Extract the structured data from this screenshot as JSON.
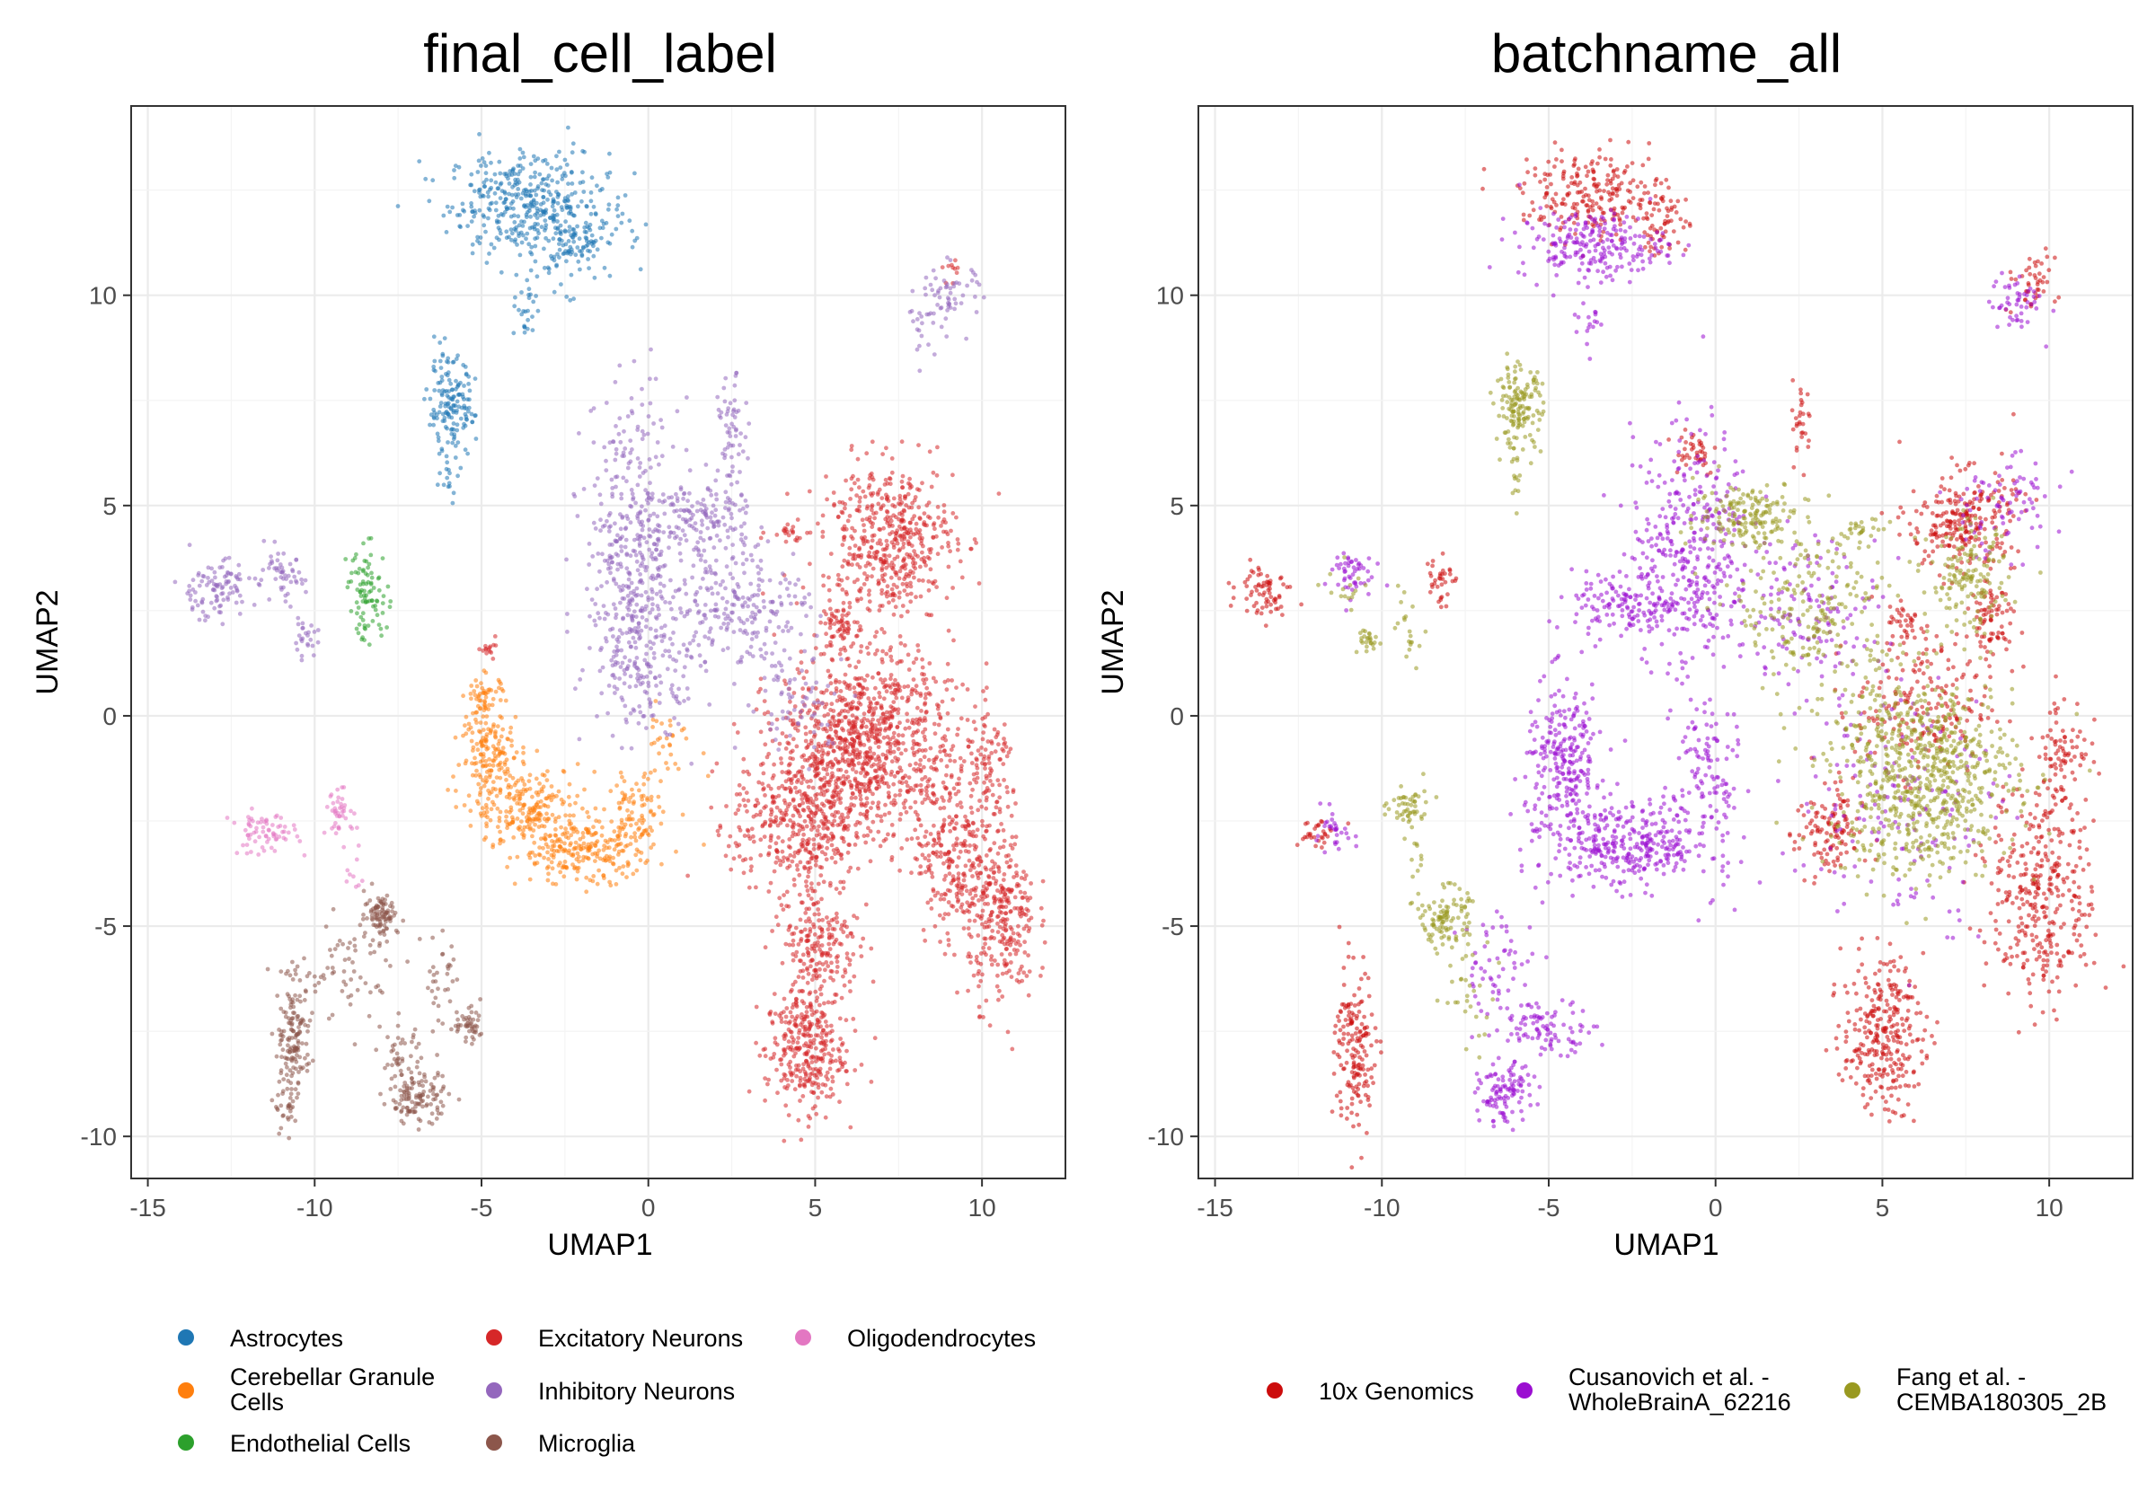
{
  "chart_data": [
    {
      "type": "scatter",
      "title": "final_cell_label",
      "xlabel": "UMAP1",
      "ylabel": "UMAP2",
      "xlim": [
        -15.5,
        12.5
      ],
      "ylim": [
        -11,
        14.5
      ],
      "xticks": [
        -15,
        -10,
        -5,
        0,
        5,
        10
      ],
      "xtick_labels": [
        "-15",
        "-10",
        "-5",
        "0",
        "5",
        "10"
      ],
      "yticks": [
        -10,
        -5,
        0,
        5,
        10
      ],
      "ytick_labels": [
        "-10",
        "-5",
        "0",
        "5",
        "10"
      ],
      "grid": true,
      "legend_position": "bottom",
      "series": [
        {
          "name": "Astrocytes",
          "color": "#1f77b4",
          "clusters": [
            {
              "cx": -3.6,
              "cy": 12.2,
              "sx": 1.2,
              "sy": 0.6,
              "n": 380
            },
            {
              "cx": -2.4,
              "cy": 11.2,
              "sx": 0.8,
              "sy": 0.5,
              "n": 120
            },
            {
              "cx": -3.7,
              "cy": 9.6,
              "sx": 0.15,
              "sy": 0.4,
              "n": 25
            },
            {
              "cx": -5.9,
              "cy": 7.3,
              "sx": 0.35,
              "sy": 0.6,
              "n": 160
            },
            {
              "cx": -6.0,
              "cy": 5.6,
              "sx": 0.1,
              "sy": 0.3,
              "n": 10
            }
          ]
        },
        {
          "name": "Cerebellar Granule Cells",
          "color": "#ff7f0e",
          "clusters": [
            {
              "cx": -4.9,
              "cy": 0.4,
              "sx": 0.3,
              "sy": 0.3,
              "n": 60
            },
            {
              "cx": -4.7,
              "cy": -0.9,
              "sx": 0.45,
              "sy": 0.5,
              "n": 140
            },
            {
              "cx": -3.6,
              "cy": -2.2,
              "sx": 0.8,
              "sy": 0.5,
              "n": 220
            },
            {
              "cx": -1.9,
              "cy": -3.2,
              "sx": 1.0,
              "sy": 0.4,
              "n": 240
            },
            {
              "cx": -0.4,
              "cy": -2.4,
              "sx": 0.4,
              "sy": 0.6,
              "n": 80
            },
            {
              "cx": 0.6,
              "cy": -0.6,
              "sx": 0.5,
              "sy": 0.4,
              "n": 30
            }
          ]
        },
        {
          "name": "Endothelial Cells",
          "color": "#2ca02c",
          "clusters": [
            {
              "cx": -8.4,
              "cy": 2.9,
              "sx": 0.3,
              "sy": 0.55,
              "n": 90
            }
          ]
        },
        {
          "name": "Excitatory Neurons",
          "color": "#d62728",
          "clusters": [
            {
              "cx": 7.2,
              "cy": 4.2,
              "sx": 1.0,
              "sy": 0.9,
              "n": 500
            },
            {
              "cx": 6.5,
              "cy": -0.6,
              "sx": 1.3,
              "sy": 1.1,
              "n": 1000
            },
            {
              "cx": 4.5,
              "cy": -2.6,
              "sx": 1.0,
              "sy": 0.8,
              "n": 400
            },
            {
              "cx": 5.1,
              "cy": -5.5,
              "sx": 0.6,
              "sy": 1.0,
              "n": 250
            },
            {
              "cx": 4.7,
              "cy": -8.0,
              "sx": 0.6,
              "sy": 0.7,
              "n": 300
            },
            {
              "cx": 9.2,
              "cy": -3.2,
              "sx": 0.6,
              "sy": 1.1,
              "n": 280
            },
            {
              "cx": 10.6,
              "cy": -4.8,
              "sx": 0.5,
              "sy": 1.0,
              "n": 280
            },
            {
              "cx": 10.3,
              "cy": -1.4,
              "sx": 0.4,
              "sy": 0.8,
              "n": 90
            },
            {
              "cx": 5.7,
              "cy": 2.1,
              "sx": 0.25,
              "sy": 0.3,
              "n": 60
            },
            {
              "cx": 4.2,
              "cy": 4.4,
              "sx": 0.3,
              "sy": 0.15,
              "n": 20
            },
            {
              "cx": -4.8,
              "cy": 1.7,
              "sx": 0.2,
              "sy": 0.15,
              "n": 15
            },
            {
              "cx": 9.2,
              "cy": 10.6,
              "sx": 0.2,
              "sy": 0.2,
              "n": 10
            }
          ]
        },
        {
          "name": "Inhibitory Neurons",
          "color": "#9467bd",
          "clusters": [
            {
              "cx": -0.5,
              "cy": 4.0,
              "sx": 0.7,
              "sy": 1.7,
              "n": 380
            },
            {
              "cx": 1.6,
              "cy": 4.6,
              "sx": 0.7,
              "sy": 0.5,
              "n": 150
            },
            {
              "cx": 2.5,
              "cy": 6.6,
              "sx": 0.2,
              "sy": 0.7,
              "n": 60
            },
            {
              "cx": 0.0,
              "cy": 1.4,
              "sx": 0.8,
              "sy": 0.8,
              "n": 180
            },
            {
              "cx": 2.8,
              "cy": 2.6,
              "sx": 1.0,
              "sy": 0.8,
              "n": 220
            },
            {
              "cx": -13.0,
              "cy": 3.0,
              "sx": 0.6,
              "sy": 0.35,
              "n": 100
            },
            {
              "cx": -11.0,
              "cy": 3.3,
              "sx": 0.35,
              "sy": 0.3,
              "n": 50
            },
            {
              "cx": -10.3,
              "cy": 1.8,
              "sx": 0.2,
              "sy": 0.2,
              "n": 25
            },
            {
              "cx": 9.0,
              "cy": 10.0,
              "sx": 0.5,
              "sy": 0.4,
              "n": 60
            },
            {
              "cx": 8.2,
              "cy": 9.2,
              "sx": 0.2,
              "sy": 0.3,
              "n": 15
            },
            {
              "cx": 4.5,
              "cy": 0.3,
              "sx": 0.8,
              "sy": 0.6,
              "n": 60
            }
          ]
        },
        {
          "name": "Microglia",
          "color": "#8c564b",
          "clusters": [
            {
              "cx": -8.0,
              "cy": -4.7,
              "sx": 0.25,
              "sy": 0.25,
              "n": 90
            },
            {
              "cx": -10.6,
              "cy": -7.6,
              "sx": 0.25,
              "sy": 0.6,
              "n": 130
            },
            {
              "cx": -10.8,
              "cy": -9.2,
              "sx": 0.2,
              "sy": 0.4,
              "n": 40
            },
            {
              "cx": -9.9,
              "cy": -6.2,
              "sx": 0.5,
              "sy": 0.2,
              "n": 25
            },
            {
              "cx": -6.9,
              "cy": -9.1,
              "sx": 0.45,
              "sy": 0.3,
              "n": 110
            },
            {
              "cx": -7.4,
              "cy": -8.2,
              "sx": 0.3,
              "sy": 0.4,
              "n": 50
            },
            {
              "cx": -5.4,
              "cy": -7.4,
              "sx": 0.3,
              "sy": 0.2,
              "n": 50
            },
            {
              "cx": -6.2,
              "cy": -6.3,
              "sx": 0.3,
              "sy": 0.6,
              "n": 30
            },
            {
              "cx": -8.7,
              "cy": -6.0,
              "sx": 0.7,
              "sy": 0.8,
              "n": 50
            }
          ]
        },
        {
          "name": "Oligodendrocytes",
          "color": "#e377c2",
          "clusters": [
            {
              "cx": -11.5,
              "cy": -2.8,
              "sx": 0.5,
              "sy": 0.25,
              "n": 70
            },
            {
              "cx": -9.2,
              "cy": -2.3,
              "sx": 0.25,
              "sy": 0.25,
              "n": 40
            },
            {
              "cx": -8.9,
              "cy": -3.7,
              "sx": 0.15,
              "sy": 0.4,
              "n": 10
            }
          ]
        }
      ]
    },
    {
      "type": "scatter",
      "title": "batchname_all",
      "xlabel": "UMAP1",
      "ylabel": "UMAP2",
      "xlim": [
        -15.5,
        12.5
      ],
      "ylim": [
        -11,
        14.5
      ],
      "xticks": [
        -15,
        -10,
        -5,
        0,
        5,
        10
      ],
      "xtick_labels": [
        "-15",
        "-10",
        "-5",
        "0",
        "5",
        "10"
      ],
      "yticks": [
        -10,
        -5,
        0,
        5,
        10
      ],
      "ytick_labels": [
        "-10",
        "-5",
        "0",
        "5",
        "10"
      ],
      "grid": true,
      "legend_position": "bottom",
      "series": [
        {
          "name": "10x Genomics",
          "color": "#cc0c0c",
          "clusters": [
            {
              "cx": -3.6,
              "cy": 12.4,
              "sx": 1.1,
              "sy": 0.5,
              "n": 230
            },
            {
              "cx": -1.6,
              "cy": 11.7,
              "sx": 0.4,
              "sy": 0.4,
              "n": 60
            },
            {
              "cx": 9.4,
              "cy": 10.3,
              "sx": 0.4,
              "sy": 0.35,
              "n": 45
            },
            {
              "cx": -13.5,
              "cy": 3.0,
              "sx": 0.4,
              "sy": 0.3,
              "n": 70
            },
            {
              "cx": -8.3,
              "cy": 3.3,
              "sx": 0.2,
              "sy": 0.35,
              "n": 35
            },
            {
              "cx": -12.0,
              "cy": -2.8,
              "sx": 0.3,
              "sy": 0.2,
              "n": 30
            },
            {
              "cx": -10.8,
              "cy": -8.0,
              "sx": 0.3,
              "sy": 1.0,
              "n": 170
            },
            {
              "cx": 7.4,
              "cy": 4.6,
              "sx": 0.8,
              "sy": 0.6,
              "n": 250
            },
            {
              "cx": 8.3,
              "cy": 2.3,
              "sx": 0.4,
              "sy": 0.5,
              "n": 80
            },
            {
              "cx": 5.0,
              "cy": -7.6,
              "sx": 0.6,
              "sy": 0.9,
              "n": 300
            },
            {
              "cx": 9.8,
              "cy": -4.2,
              "sx": 0.8,
              "sy": 1.3,
              "n": 350
            },
            {
              "cx": 3.4,
              "cy": -2.8,
              "sx": 0.5,
              "sy": 0.6,
              "n": 120
            },
            {
              "cx": 6.2,
              "cy": 0.2,
              "sx": 1.0,
              "sy": 0.8,
              "n": 180
            },
            {
              "cx": -0.7,
              "cy": 6.3,
              "sx": 0.4,
              "sy": 0.3,
              "n": 40
            },
            {
              "cx": 2.6,
              "cy": 7.0,
              "sx": 0.15,
              "sy": 0.5,
              "n": 30
            },
            {
              "cx": 5.7,
              "cy": 2.2,
              "sx": 0.3,
              "sy": 0.3,
              "n": 40
            },
            {
              "cx": 10.4,
              "cy": -0.8,
              "sx": 0.4,
              "sy": 0.7,
              "n": 80
            }
          ]
        },
        {
          "name": "Cusanovich et al. - WholeBrainA_62216",
          "color": "#9b0fd1",
          "clusters": [
            {
              "cx": -3.7,
              "cy": 11.2,
              "sx": 1.1,
              "sy": 0.4,
              "n": 220
            },
            {
              "cx": -3.8,
              "cy": 9.5,
              "sx": 0.2,
              "sy": 0.4,
              "n": 20
            },
            {
              "cx": 9.0,
              "cy": 9.8,
              "sx": 0.4,
              "sy": 0.4,
              "n": 50
            },
            {
              "cx": -11.0,
              "cy": 3.4,
              "sx": 0.35,
              "sy": 0.3,
              "n": 50
            },
            {
              "cx": -0.7,
              "cy": 4.0,
              "sx": 0.9,
              "sy": 1.4,
              "n": 380
            },
            {
              "cx": -2.7,
              "cy": 2.6,
              "sx": 0.8,
              "sy": 0.4,
              "n": 140
            },
            {
              "cx": -4.5,
              "cy": -1.2,
              "sx": 0.6,
              "sy": 1.0,
              "n": 280
            },
            {
              "cx": -2.5,
              "cy": -3.1,
              "sx": 1.2,
              "sy": 0.5,
              "n": 330
            },
            {
              "cx": -0.3,
              "cy": -1.5,
              "sx": 0.5,
              "sy": 1.2,
              "n": 120
            },
            {
              "cx": -6.3,
              "cy": -9.0,
              "sx": 0.4,
              "sy": 0.35,
              "n": 110
            },
            {
              "cx": -5.0,
              "cy": -7.4,
              "sx": 0.7,
              "sy": 0.3,
              "n": 90
            },
            {
              "cx": -6.5,
              "cy": -6.0,
              "sx": 0.6,
              "sy": 0.7,
              "n": 60
            },
            {
              "cx": 3.0,
              "cy": 2.5,
              "sx": 1.0,
              "sy": 0.9,
              "n": 130
            },
            {
              "cx": 5.5,
              "cy": -2.0,
              "sx": 1.5,
              "sy": 1.5,
              "n": 160
            },
            {
              "cx": 8.5,
              "cy": 5.0,
              "sx": 0.9,
              "sy": 0.6,
              "n": 80
            },
            {
              "cx": -11.4,
              "cy": -2.8,
              "sx": 0.3,
              "sy": 0.25,
              "n": 30
            }
          ]
        },
        {
          "name": "Fang et al. - CEMBA180305_2B",
          "color": "#999920",
          "clusters": [
            {
              "cx": -5.9,
              "cy": 7.3,
              "sx": 0.35,
              "sy": 0.5,
              "n": 150
            },
            {
              "cx": -6.0,
              "cy": 5.6,
              "sx": 0.1,
              "sy": 0.3,
              "n": 10
            },
            {
              "cx": 1.0,
              "cy": 4.8,
              "sx": 0.8,
              "sy": 0.4,
              "n": 160
            },
            {
              "cx": 3.0,
              "cy": 2.5,
              "sx": 1.2,
              "sy": 1.0,
              "n": 220
            },
            {
              "cx": 7.6,
              "cy": 3.2,
              "sx": 0.6,
              "sy": 0.6,
              "n": 150
            },
            {
              "cx": 6.2,
              "cy": -1.4,
              "sx": 1.4,
              "sy": 1.2,
              "n": 750
            },
            {
              "cx": 4.4,
              "cy": 4.4,
              "sx": 0.3,
              "sy": 0.15,
              "n": 25
            },
            {
              "cx": -10.3,
              "cy": 1.8,
              "sx": 0.2,
              "sy": 0.2,
              "n": 25
            },
            {
              "cx": -9.2,
              "cy": 1.9,
              "sx": 0.2,
              "sy": 0.4,
              "n": 20
            },
            {
              "cx": -8.1,
              "cy": -4.8,
              "sx": 0.35,
              "sy": 0.35,
              "n": 100
            },
            {
              "cx": -9.2,
              "cy": -2.2,
              "sx": 0.3,
              "sy": 0.3,
              "n": 50
            },
            {
              "cx": -9.0,
              "cy": -3.7,
              "sx": 0.15,
              "sy": 0.8,
              "n": 15
            },
            {
              "cx": -7.5,
              "cy": -6.5,
              "sx": 0.5,
              "sy": 0.7,
              "n": 30
            },
            {
              "cx": -11.0,
              "cy": 3.0,
              "sx": 0.3,
              "sy": 0.3,
              "n": 15
            }
          ]
        }
      ]
    }
  ]
}
